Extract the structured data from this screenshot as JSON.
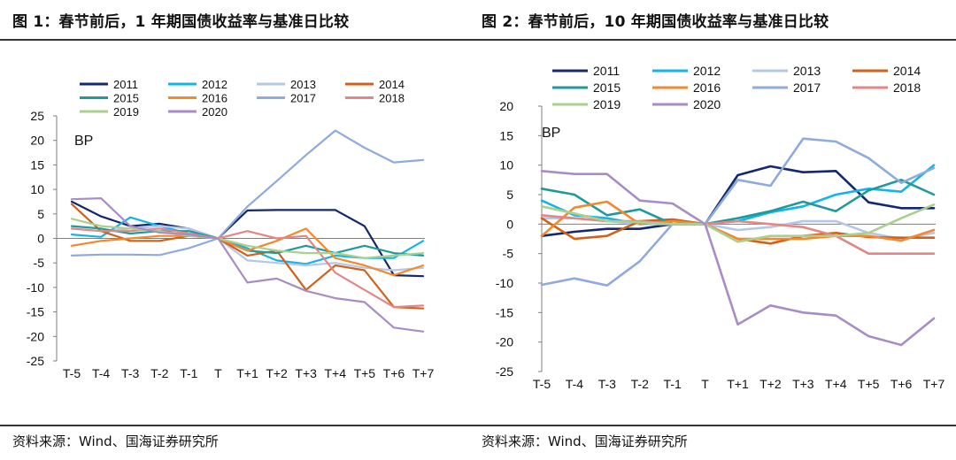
{
  "chart_data": [
    {
      "type": "line",
      "title": "图 1：春节前后，1 年期国债收益率与基准日比较",
      "unit_label": "BP",
      "source": "资料来源：Wind、国海证券研究所",
      "x": [
        "T-5",
        "T-4",
        "T-3",
        "T-2",
        "T-1",
        "T",
        "T+1",
        "T+2",
        "T+3",
        "T+4",
        "T+5",
        "T+6",
        "T+7"
      ],
      "ylim": [
        -25,
        25
      ],
      "yticks": [
        25,
        20,
        15,
        10,
        5,
        0,
        -5,
        -10,
        -15,
        -20,
        -25
      ],
      "grid": false,
      "legend_position": "top",
      "series": [
        {
          "name": "2011",
          "color": "#13286e",
          "values": [
            7.5,
            4.5,
            2.5,
            3,
            2,
            0,
            5.7,
            5.8,
            5.8,
            5.8,
            2.5,
            -7.5,
            -7.7
          ]
        },
        {
          "name": "2012",
          "color": "#14b4e8",
          "values": [
            0.8,
            0.3,
            4.3,
            2.5,
            1,
            0,
            -2,
            -4.5,
            -5.2,
            -3.5,
            -4,
            -4,
            -0.5
          ]
        },
        {
          "name": "2013",
          "color": "#b4c7e7",
          "values": [
            2,
            1.5,
            2,
            2.5,
            2,
            0,
            -4.5,
            -5,
            -5.5,
            -5,
            -6,
            -6.5,
            -6
          ]
        },
        {
          "name": "2014",
          "color": "#d0601a",
          "values": [
            7,
            1.5,
            -0.5,
            -0.5,
            0.5,
            0,
            -3.5,
            -2.5,
            -10.5,
            -5.5,
            -6.5,
            -14,
            -14.3
          ]
        },
        {
          "name": "2015",
          "color": "#1f9a9a",
          "values": [
            2.5,
            2,
            1,
            1.5,
            1.5,
            0,
            -2.5,
            -3,
            -1.5,
            -3,
            -1.5,
            -3,
            -3.5
          ]
        },
        {
          "name": "2016",
          "color": "#f5882a",
          "values": [
            -1.5,
            -0.5,
            0,
            0.5,
            0.5,
            0,
            -2.5,
            -0.5,
            2,
            -4,
            -5.5,
            -7.5,
            -5.5
          ]
        },
        {
          "name": "2017",
          "color": "#8faadc",
          "values": [
            -3.5,
            -3.3,
            -3.3,
            -3.4,
            -2,
            0,
            6.5,
            11.7,
            17,
            22,
            18.5,
            15.5,
            16
          ]
        },
        {
          "name": "2018",
          "color": "#e58686",
          "values": [
            2,
            1.5,
            1.5,
            2,
            1,
            0,
            1.5,
            0,
            0.5,
            -7,
            -10.5,
            -14,
            -13.7
          ]
        },
        {
          "name": "2019",
          "color": "#a9d08e",
          "values": [
            4,
            2.5,
            2,
            1.5,
            0.5,
            0,
            -1.5,
            -2.5,
            -3,
            -3,
            -4,
            -3.5,
            -3
          ]
        },
        {
          "name": "2020",
          "color": "#a88dc4",
          "values": [
            8,
            8.2,
            2.5,
            1.2,
            0.8,
            0,
            -9,
            -8.2,
            -10.7,
            -12.2,
            -13,
            -18.2,
            -19
          ]
        }
      ]
    },
    {
      "type": "line",
      "title": "图 2：春节前后，10 年期国债收益率与基准日比较",
      "unit_label": "BP",
      "source": "资料来源：Wind、国海证券研究所",
      "x": [
        "T-5",
        "T-4",
        "T-3",
        "T-2",
        "T-1",
        "T",
        "T+1",
        "T+2",
        "T+3",
        "T+4",
        "T+5",
        "T+6",
        "T+7"
      ],
      "ylim": [
        -25,
        20
      ],
      "yticks": [
        20,
        15,
        10,
        5,
        0,
        -5,
        -10,
        -15,
        -20,
        -25
      ],
      "grid": false,
      "legend_position": "top",
      "series": [
        {
          "name": "2011",
          "color": "#13286e",
          "values": [
            -2,
            -1.3,
            -0.8,
            -0.8,
            0,
            0,
            8.3,
            9.8,
            8.8,
            9,
            3.7,
            2.7,
            2.7
          ]
        },
        {
          "name": "2012",
          "color": "#14b4e8",
          "values": [
            4,
            1.5,
            1,
            0,
            0.5,
            0,
            0.5,
            2,
            3,
            5,
            6,
            5.5,
            10
          ]
        },
        {
          "name": "2013",
          "color": "#b4c7e7",
          "values": [
            1,
            1,
            0.5,
            0,
            0,
            0,
            -1,
            -0.5,
            0.5,
            0.5,
            -1.5,
            -2.5,
            -1.5
          ]
        },
        {
          "name": "2014",
          "color": "#d0601a",
          "values": [
            1,
            -2.5,
            -2,
            0.5,
            0.8,
            0,
            -2.5,
            -3.3,
            -2,
            -1.5,
            -2.2,
            -2.3,
            -2.3
          ]
        },
        {
          "name": "2015",
          "color": "#1f9a9a",
          "values": [
            6,
            5,
            1.5,
            2.5,
            0,
            0,
            1,
            2.2,
            3.8,
            2.2,
            5.7,
            7.5,
            5
          ]
        },
        {
          "name": "2016",
          "color": "#f5882a",
          "values": [
            -2,
            2.8,
            3.8,
            0,
            0.5,
            0,
            -2.5,
            -2.5,
            -2.5,
            -2,
            -2,
            -2.8,
            -1
          ]
        },
        {
          "name": "2017",
          "color": "#8faadc",
          "values": [
            -10.3,
            -9.2,
            -10.4,
            -6.3,
            0,
            0,
            7.5,
            6.5,
            14.5,
            14,
            11.2,
            7,
            9.5
          ]
        },
        {
          "name": "2018",
          "color": "#e58686",
          "values": [
            1.5,
            1,
            0.5,
            0.5,
            0,
            0,
            0.5,
            0,
            -0.5,
            -2,
            -5,
            -5,
            -5
          ]
        },
        {
          "name": "2019",
          "color": "#a9d08e",
          "values": [
            3,
            1.8,
            0.5,
            0.3,
            0,
            0,
            -3,
            -2,
            -2,
            -2,
            -1.5,
            1,
            3.3
          ]
        },
        {
          "name": "2020",
          "color": "#a88dc4",
          "values": [
            9,
            8.5,
            8.5,
            4,
            3.5,
            0,
            -17,
            -13.8,
            -15,
            -15.5,
            -19,
            -20.5,
            -16
          ]
        }
      ]
    }
  ]
}
